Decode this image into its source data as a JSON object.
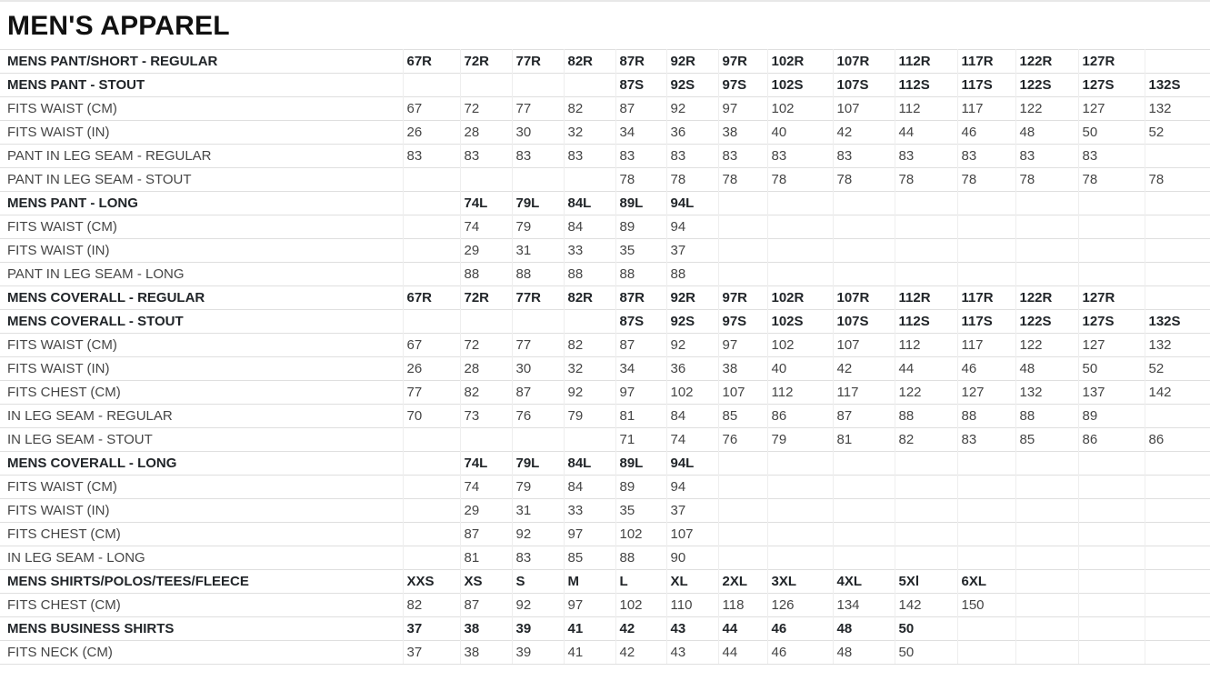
{
  "title": "MEN'S APPAREL",
  "table": {
    "column_count": 14,
    "rows": [
      {
        "label": "MENS PANT/SHORT - REGULAR",
        "section": true,
        "values": [
          "67R",
          "72R",
          "77R",
          "82R",
          "87R",
          "92R",
          "97R",
          "102R",
          "107R",
          "112R",
          "117R",
          "122R",
          "127R",
          ""
        ]
      },
      {
        "label": "MENS PANT - STOUT",
        "section": true,
        "values": [
          "",
          "",
          "",
          "",
          "87S",
          "92S",
          "97S",
          "102S",
          "107S",
          "112S",
          "117S",
          "122S",
          "127S",
          "132S"
        ]
      },
      {
        "label": "FITS WAIST (CM)",
        "section": false,
        "values": [
          "67",
          "72",
          "77",
          "82",
          "87",
          "92",
          "97",
          "102",
          "107",
          "112",
          "117",
          "122",
          "127",
          "132"
        ]
      },
      {
        "label": "FITS WAIST (IN)",
        "section": false,
        "values": [
          "26",
          "28",
          "30",
          "32",
          "34",
          "36",
          "38",
          "40",
          "42",
          "44",
          "46",
          "48",
          "50",
          "52"
        ]
      },
      {
        "label": "PANT IN LEG SEAM - REGULAR",
        "section": false,
        "values": [
          "83",
          "83",
          "83",
          "83",
          "83",
          "83",
          "83",
          "83",
          "83",
          "83",
          "83",
          "83",
          "83",
          ""
        ]
      },
      {
        "label": "PANT IN LEG SEAM - STOUT",
        "section": false,
        "values": [
          "",
          "",
          "",
          "",
          "78",
          "78",
          "78",
          "78",
          "78",
          "78",
          "78",
          "78",
          "78",
          "78"
        ]
      },
      {
        "label": "MENS PANT - LONG",
        "section": true,
        "values": [
          "",
          "74L",
          "79L",
          "84L",
          "89L",
          "94L",
          "",
          "",
          "",
          "",
          "",
          "",
          "",
          ""
        ]
      },
      {
        "label": "FITS WAIST (CM)",
        "section": false,
        "values": [
          "",
          "74",
          "79",
          "84",
          "89",
          "94",
          "",
          "",
          "",
          "",
          "",
          "",
          "",
          ""
        ]
      },
      {
        "label": "FITS WAIST (IN)",
        "section": false,
        "values": [
          "",
          "29",
          "31",
          "33",
          "35",
          "37",
          "",
          "",
          "",
          "",
          "",
          "",
          "",
          ""
        ]
      },
      {
        "label": "PANT IN LEG SEAM - LONG",
        "section": false,
        "values": [
          "",
          "88",
          "88",
          "88",
          "88",
          "88",
          "",
          "",
          "",
          "",
          "",
          "",
          "",
          ""
        ]
      },
      {
        "label": "MENS COVERALL - REGULAR",
        "section": true,
        "values": [
          "67R",
          "72R",
          "77R",
          "82R",
          "87R",
          "92R",
          "97R",
          "102R",
          "107R",
          "112R",
          "117R",
          "122R",
          "127R",
          ""
        ]
      },
      {
        "label": "MENS COVERALL - STOUT",
        "section": true,
        "values": [
          "",
          "",
          "",
          "",
          "87S",
          "92S",
          "97S",
          "102S",
          "107S",
          "112S",
          "117S",
          "122S",
          "127S",
          "132S"
        ]
      },
      {
        "label": "FITS WAIST (CM)",
        "section": false,
        "values": [
          "67",
          "72",
          "77",
          "82",
          "87",
          "92",
          "97",
          "102",
          "107",
          "112",
          "117",
          "122",
          "127",
          "132"
        ]
      },
      {
        "label": "FITS WAIST (IN)",
        "section": false,
        "values": [
          "26",
          "28",
          "30",
          "32",
          "34",
          "36",
          "38",
          "40",
          "42",
          "44",
          "46",
          "48",
          "50",
          "52"
        ]
      },
      {
        "label": "FITS CHEST (CM)",
        "section": false,
        "values": [
          "77",
          "82",
          "87",
          "92",
          "97",
          "102",
          "107",
          "112",
          "117",
          "122",
          "127",
          "132",
          "137",
          "142"
        ]
      },
      {
        "label": "IN LEG SEAM - REGULAR",
        "section": false,
        "values": [
          "70",
          "73",
          "76",
          "79",
          "81",
          "84",
          "85",
          "86",
          "87",
          "88",
          "88",
          "88",
          "89",
          ""
        ]
      },
      {
        "label": "IN LEG SEAM - STOUT",
        "section": false,
        "values": [
          "",
          "",
          "",
          "",
          "71",
          "74",
          "76",
          "79",
          "81",
          "82",
          "83",
          "85",
          "86",
          "86"
        ]
      },
      {
        "label": "MENS COVERALL - LONG",
        "section": true,
        "values": [
          "",
          "74L",
          "79L",
          "84L",
          "89L",
          "94L",
          "",
          "",
          "",
          "",
          "",
          "",
          "",
          ""
        ]
      },
      {
        "label": "FITS WAIST (CM)",
        "section": false,
        "values": [
          "",
          "74",
          "79",
          "84",
          "89",
          "94",
          "",
          "",
          "",
          "",
          "",
          "",
          "",
          ""
        ]
      },
      {
        "label": "FITS WAIST (IN)",
        "section": false,
        "values": [
          "",
          "29",
          "31",
          "33",
          "35",
          "37",
          "",
          "",
          "",
          "",
          "",
          "",
          "",
          ""
        ]
      },
      {
        "label": "FITS CHEST (CM)",
        "section": false,
        "values": [
          "",
          "87",
          "92",
          "97",
          "102",
          "107",
          "",
          "",
          "",
          "",
          "",
          "",
          "",
          ""
        ]
      },
      {
        "label": "IN LEG SEAM - LONG",
        "section": false,
        "values": [
          "",
          "81",
          "83",
          "85",
          "88",
          "90",
          "",
          "",
          "",
          "",
          "",
          "",
          "",
          ""
        ]
      },
      {
        "label": "MENS SHIRTS/POLOS/TEES/FLEECE",
        "section": true,
        "values": [
          "XXS",
          "XS",
          "S",
          "M",
          "L",
          "XL",
          "2XL",
          "3XL",
          "4XL",
          "5Xl",
          "6XL",
          "",
          "",
          ""
        ]
      },
      {
        "label": "FITS CHEST (CM)",
        "section": false,
        "values": [
          "82",
          "87",
          "92",
          "97",
          "102",
          "110",
          "118",
          "126",
          "134",
          "142",
          "150",
          "",
          "",
          ""
        ]
      },
      {
        "label": "MENS BUSINESS SHIRTS",
        "section": true,
        "values": [
          "37",
          "38",
          "39",
          "41",
          "42",
          "43",
          "44",
          "46",
          "48",
          "50",
          "",
          "",
          "",
          ""
        ]
      },
      {
        "label": "FITS NECK (CM)",
        "section": false,
        "values": [
          "37",
          "38",
          "39",
          "41",
          "42",
          "43",
          "44",
          "46",
          "48",
          "50",
          "",
          "",
          "",
          ""
        ]
      }
    ]
  }
}
